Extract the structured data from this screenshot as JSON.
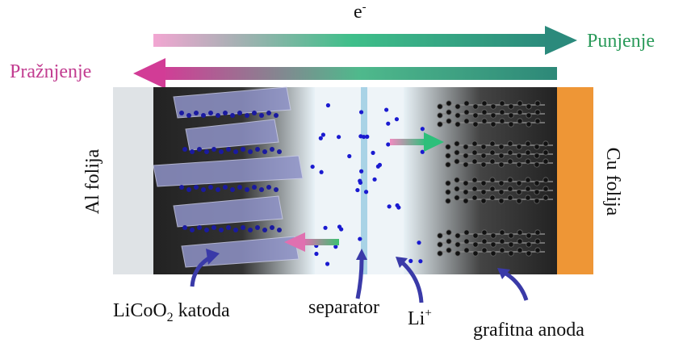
{
  "labels": {
    "electron": {
      "base": "e",
      "sup": "-"
    },
    "charging": "Punjenje",
    "discharging": "Pražnjenje",
    "al_foil": "Al folija",
    "cu_foil": "Cu folija",
    "cathode": {
      "part1": "LiCoO",
      "sub": "2",
      "part2": " katoda"
    },
    "separator": "separator",
    "lithium_ion": {
      "base": "Li",
      "sup": "+"
    },
    "anode": "grafitna anoda"
  }
}
